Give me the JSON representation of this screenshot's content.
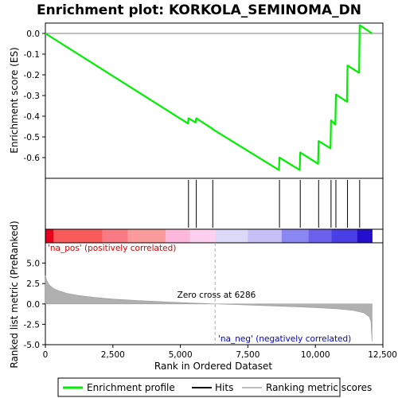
{
  "chart_data": {
    "type": "line",
    "title": "Enrichment plot: KORKOLA_SEMINOMA_DN",
    "xlabel": "Rank in Ordered Dataset",
    "ylabel_top": "Enrichment score (ES)",
    "ylabel_bottom": "Ranked list metric (PreRanked)",
    "x_range": [
      0,
      12500
    ],
    "x_ticks": [
      0,
      2500,
      5000,
      7500,
      10000,
      12500
    ],
    "x_tick_labels": [
      "0",
      "2,500",
      "5,000",
      "7,500",
      "10,000",
      "12,500"
    ],
    "es_range": [
      -0.7,
      0.05
    ],
    "es_ticks": [
      0.0,
      -0.1,
      -0.2,
      -0.3,
      -0.4,
      -0.5,
      -0.6
    ],
    "es_tick_labels": [
      "0.0",
      "-0.1",
      "-0.2",
      "-0.3",
      "-0.4",
      "-0.5",
      "-0.6"
    ],
    "metric_range": [
      -5.0,
      7.5
    ],
    "metric_ticks": [
      5.0,
      2.5,
      0.0,
      -2.5,
      -5.0
    ],
    "metric_tick_labels": [
      "5.0",
      "2.5",
      "0.0",
      "-2.5",
      "-5.0"
    ],
    "total_ranks": 12100,
    "es_curve": {
      "x": [
        0,
        5280,
        5300,
        5560,
        5590,
        6180,
        6200,
        8650,
        8670,
        9420,
        9440,
        10100,
        10120,
        10560,
        10580,
        10740,
        10760,
        11170,
        11190,
        11620,
        11640,
        12100
      ],
      "y": [
        0.0,
        -0.435,
        -0.41,
        -0.43,
        -0.41,
        -0.46,
        -0.463,
        -0.66,
        -0.6,
        -0.66,
        -0.575,
        -0.63,
        -0.52,
        -0.555,
        -0.42,
        -0.44,
        -0.295,
        -0.33,
        -0.155,
        -0.19,
        0.04,
        0.0
      ]
    },
    "hits": [
      5300,
      5590,
      6200,
      8670,
      9440,
      10120,
      10580,
      10760,
      11190,
      11640
    ],
    "metric_curve": {
      "x": [
        0,
        50,
        150,
        300,
        500,
        800,
        1200,
        1800,
        2500,
        3500,
        4500,
        5500,
        6286,
        7000,
        8000,
        9000,
        10000,
        10800,
        11400,
        11800,
        12000,
        12060,
        12080,
        12100
      ],
      "y": [
        3.5,
        2.9,
        2.3,
        1.9,
        1.6,
        1.3,
        1.05,
        0.8,
        0.6,
        0.4,
        0.25,
        0.1,
        0.0,
        -0.08,
        -0.2,
        -0.32,
        -0.45,
        -0.6,
        -0.8,
        -1.1,
        -1.6,
        -2.2,
        -3.5,
        -4.6
      ]
    },
    "zero_cross_rank": 6286,
    "annotations": {
      "zero_cross": "Zero cross at 6286",
      "pos_label": "'na_pos' (positively correlated)",
      "neg_label": "'na_neg' (negatively correlated)"
    },
    "heat_bar": {
      "x_start": [
        0,
        300,
        2100,
        3050,
        4450,
        5350,
        6300,
        7500,
        8750,
        9750,
        10600,
        11550
      ],
      "x_end": [
        300,
        2100,
        3050,
        4450,
        5350,
        6300,
        7500,
        8750,
        9750,
        10600,
        11550,
        12100
      ],
      "colors": [
        "#e8001c",
        "#f85a5a",
        "#f87a82",
        "#fb9a9a",
        "#fbb8da",
        "#fcd0ee",
        "#dcd8f8",
        "#c4c0f6",
        "#8a86f2",
        "#6a60ec",
        "#4a3ee6",
        "#2410cc"
      ]
    },
    "legend": {
      "placement": "bottom",
      "items": [
        {
          "label": "Enrichment profile",
          "color": "#00ee00"
        },
        {
          "label": "Hits",
          "color": "#000000"
        },
        {
          "label": "Ranking metric scores",
          "color": "#bbbbbb"
        }
      ]
    },
    "colors": {
      "es_line": "#00ee00",
      "metric_fill": "#b0b0b0",
      "pos_text": "#dd0000",
      "neg_text": "#0000cc",
      "zero_dash": "#aaaaaa"
    }
  }
}
